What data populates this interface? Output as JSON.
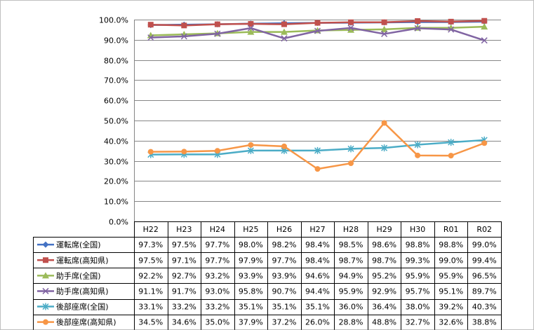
{
  "chart_data": {
    "type": "line",
    "title": "",
    "xlabel": "",
    "ylabel": "",
    "ylim": [
      0,
      100
    ],
    "yticks": [
      "0.0%",
      "10.0%",
      "20.0%",
      "30.0%",
      "40.0%",
      "50.0%",
      "60.0%",
      "70.0%",
      "80.0%",
      "90.0%",
      "100.0%"
    ],
    "grid": true,
    "legend": "data-table-left",
    "categories": [
      "H22",
      "H23",
      "H24",
      "H25",
      "H26",
      "H27",
      "H28",
      "H29",
      "H30",
      "R01",
      "R02"
    ],
    "series": [
      {
        "name": "運転席(全国)",
        "color": "#4472c4",
        "marker": "diamond",
        "values": [
          97.3,
          97.5,
          97.7,
          98.0,
          98.2,
          98.4,
          98.5,
          98.6,
          98.8,
          98.8,
          99.0
        ],
        "labels": [
          "97.3%",
          "97.5%",
          "97.7%",
          "98.0%",
          "98.2%",
          "98.4%",
          "98.5%",
          "98.6%",
          "98.8%",
          "98.8%",
          "99.0%"
        ]
      },
      {
        "name": "運転席(高知県)",
        "color": "#c0504d",
        "marker": "square",
        "values": [
          97.5,
          97.1,
          97.7,
          97.9,
          97.7,
          98.4,
          98.7,
          98.7,
          99.3,
          99.0,
          99.4
        ],
        "labels": [
          "97.5%",
          "97.1%",
          "97.7%",
          "97.9%",
          "97.7%",
          "98.4%",
          "98.7%",
          "98.7%",
          "99.3%",
          "99.0%",
          "99.4%"
        ]
      },
      {
        "name": "助手席(全国)",
        "color": "#9bbb59",
        "marker": "triangle",
        "values": [
          92.2,
          92.7,
          93.2,
          93.9,
          93.9,
          94.6,
          94.9,
          95.2,
          95.9,
          95.9,
          96.5
        ],
        "labels": [
          "92.2%",
          "92.7%",
          "93.2%",
          "93.9%",
          "93.9%",
          "94.6%",
          "94.9%",
          "95.2%",
          "95.9%",
          "95.9%",
          "96.5%"
        ]
      },
      {
        "name": "助手席(高知県)",
        "color": "#8064a2",
        "marker": "x",
        "values": [
          91.1,
          91.7,
          93.0,
          95.8,
          90.7,
          94.4,
          95.9,
          92.9,
          95.7,
          95.1,
          89.7
        ],
        "labels": [
          "91.1%",
          "91.7%",
          "93.0%",
          "95.8%",
          "90.7%",
          "94.4%",
          "95.9%",
          "92.9%",
          "95.7%",
          "95.1%",
          "89.7%"
        ]
      },
      {
        "name": "後部座席(全国)",
        "color": "#4bacc6",
        "marker": "star",
        "values": [
          33.1,
          33.2,
          33.2,
          35.1,
          35.1,
          35.1,
          36.0,
          36.4,
          38.0,
          39.2,
          40.3
        ],
        "labels": [
          "33.1%",
          "33.2%",
          "33.2%",
          "35.1%",
          "35.1%",
          "35.1%",
          "36.0%",
          "36.4%",
          "38.0%",
          "39.2%",
          "40.3%"
        ]
      },
      {
        "name": "後部座席(高知県)",
        "color": "#f79646",
        "marker": "circle",
        "values": [
          34.5,
          34.6,
          35.0,
          37.9,
          37.2,
          26.0,
          28.8,
          48.8,
          32.7,
          32.6,
          38.8
        ],
        "labels": [
          "34.5%",
          "34.6%",
          "35.0%",
          "37.9%",
          "37.2%",
          "26.0%",
          "28.8%",
          "48.8%",
          "32.7%",
          "32.6%",
          "38.8%"
        ]
      }
    ]
  }
}
